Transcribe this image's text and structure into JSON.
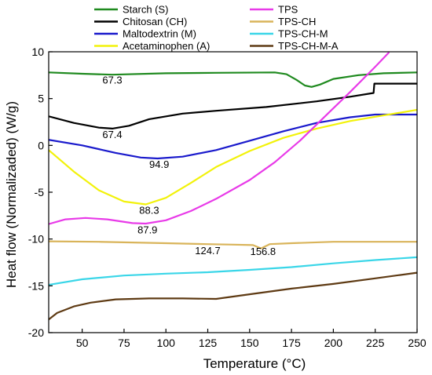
{
  "chart_data": {
    "type": "line",
    "xlabel": "Temperature (°C)",
    "ylabel": "Heat flow (Normalizaded) (W/g)",
    "xlim": [
      30,
      250
    ],
    "ylim": [
      -20,
      10
    ],
    "xticks": [
      50,
      75,
      100,
      125,
      150,
      175,
      200,
      225,
      250
    ],
    "yticks": [
      -20,
      -15,
      -10,
      -5,
      0,
      5,
      10
    ],
    "grid": false,
    "legend_position": "top",
    "series": [
      {
        "name": "Starch (S)",
        "color": "#1f8a1f",
        "x": [
          30,
          50,
          68,
          100,
          130,
          165,
          172,
          178,
          183,
          187,
          192,
          200,
          215,
          230,
          250
        ],
        "y": [
          7.8,
          7.65,
          7.55,
          7.7,
          7.75,
          7.8,
          7.6,
          7.0,
          6.4,
          6.25,
          6.5,
          7.1,
          7.5,
          7.7,
          7.8
        ]
      },
      {
        "name": "Chitosan (CH)",
        "color": "#000000",
        "x": [
          30,
          45,
          60,
          68,
          78,
          90,
          110,
          130,
          160,
          190,
          210,
          224,
          224.5,
          235,
          250
        ],
        "y": [
          3.1,
          2.4,
          1.9,
          1.8,
          2.1,
          2.8,
          3.4,
          3.7,
          4.1,
          4.7,
          5.2,
          5.6,
          6.6,
          6.6,
          6.6
        ]
      },
      {
        "name": "Maltodextrin (M)",
        "color": "#1a1acc",
        "x": [
          30,
          50,
          70,
          85,
          95,
          110,
          130,
          150,
          170,
          190,
          210,
          225,
          250
        ],
        "y": [
          0.6,
          0.0,
          -0.8,
          -1.3,
          -1.4,
          -1.2,
          -0.5,
          0.5,
          1.5,
          2.4,
          3.0,
          3.3,
          3.3
        ]
      },
      {
        "name": "Acetaminophen (A)",
        "color": "#f2f20a",
        "x": [
          30,
          45,
          60,
          75,
          88,
          100,
          115,
          130,
          150,
          170,
          190,
          210,
          230,
          250
        ],
        "y": [
          -0.5,
          -2.8,
          -4.8,
          -6.0,
          -6.3,
          -5.6,
          -4.0,
          -2.3,
          -0.6,
          0.8,
          1.8,
          2.6,
          3.2,
          3.8
        ]
      },
      {
        "name": "TPS",
        "color": "#e83ae8",
        "x": [
          30,
          40,
          52,
          65,
          80,
          88,
          100,
          115,
          130,
          150,
          165,
          180,
          195,
          210,
          225,
          233
        ],
        "y": [
          -8.4,
          -7.9,
          -7.75,
          -7.9,
          -8.3,
          -8.35,
          -8.0,
          -7.0,
          -5.7,
          -3.7,
          -1.8,
          0.5,
          3.1,
          5.7,
          8.4,
          9.9
        ]
      },
      {
        "name": "TPS-CH",
        "color": "#d9b45a",
        "x": [
          30,
          60,
          100,
          124.7,
          140,
          152,
          156.8,
          162,
          175,
          200,
          250
        ],
        "y": [
          -10.25,
          -10.3,
          -10.45,
          -10.55,
          -10.6,
          -10.65,
          -11.0,
          -10.55,
          -10.45,
          -10.3,
          -10.3
        ]
      },
      {
        "name": "TPS-CH-M",
        "color": "#3ad6e8",
        "x": [
          30,
          50,
          75,
          100,
          125,
          150,
          175,
          200,
          225,
          250
        ],
        "y": [
          -14.9,
          -14.3,
          -13.9,
          -13.7,
          -13.55,
          -13.3,
          -13.0,
          -12.6,
          -12.25,
          -11.95
        ]
      },
      {
        "name": "TPS-CH-M-A",
        "color": "#5e3a13",
        "x": [
          30,
          35,
          45,
          55,
          70,
          90,
          110,
          130,
          150,
          175,
          200,
          225,
          250
        ],
        "y": [
          -18.6,
          -17.9,
          -17.2,
          -16.8,
          -16.45,
          -16.35,
          -16.35,
          -16.4,
          -15.9,
          -15.3,
          -14.8,
          -14.2,
          -13.6
        ]
      }
    ],
    "annotations": [
      {
        "text": "67.3",
        "x": 68,
        "y": 6.6
      },
      {
        "text": "67.4",
        "x": 68,
        "y": 0.8
      },
      {
        "text": "94.9",
        "x": 96,
        "y": -2.4
      },
      {
        "text": "88.3",
        "x": 90,
        "y": -7.3
      },
      {
        "text": "87.9",
        "x": 89,
        "y": -9.4
      },
      {
        "text": "124.7",
        "x": 125,
        "y": -11.6
      },
      {
        "text": "156.8",
        "x": 158,
        "y": -11.7
      }
    ]
  }
}
